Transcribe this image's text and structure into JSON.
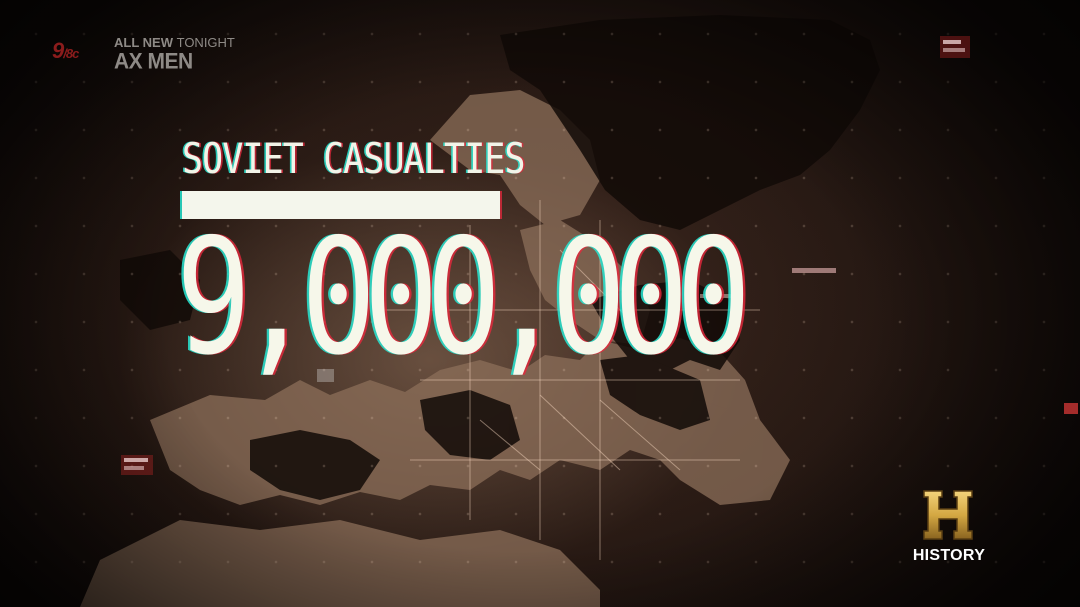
{
  "promo": {
    "time_number": "9",
    "time_suffix": "/8c",
    "line1_prefix": "ALL NEW",
    "line1_suffix": "TONIGHT",
    "show_title": "AX MEN"
  },
  "headline": {
    "title": "SOVIET CASUALTIES",
    "value": "9,000,000"
  },
  "network_logo": {
    "icon": "h-shield-icon",
    "text": "HISTORY"
  },
  "colors": {
    "text": "#f6f7ea",
    "cyan_fringe": "#28e6d2",
    "red_fringe": "#e6283c",
    "logo_gold": "#d4a843",
    "promo_red": "#8b1c1c"
  }
}
